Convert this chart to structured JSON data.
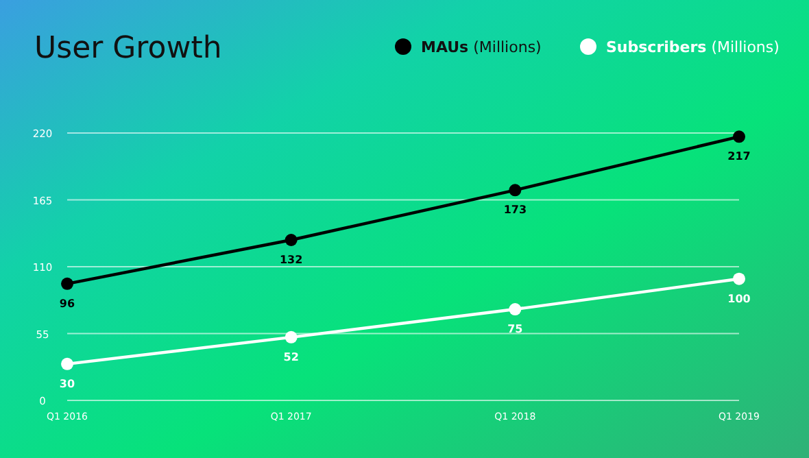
{
  "chart_data": {
    "type": "line",
    "title": "User Growth",
    "categories": [
      "Q1 2016",
      "Q1 2017",
      "Q1 2018",
      "Q1 2019"
    ],
    "series": [
      {
        "name": "MAUs (Millions)",
        "color": "#000000",
        "values": [
          96,
          132,
          173,
          217
        ]
      },
      {
        "name": "Subscribers (Millions)",
        "color": "#ffffff",
        "values": [
          30,
          52,
          75,
          100
        ]
      }
    ],
    "ylim": [
      0,
      220
    ],
    "yticks": [
      0,
      55,
      110,
      165,
      220
    ],
    "grid": "y",
    "legend": "top right",
    "marker": "circle",
    "line_style": "solid",
    "data_labels": true
  }
}
